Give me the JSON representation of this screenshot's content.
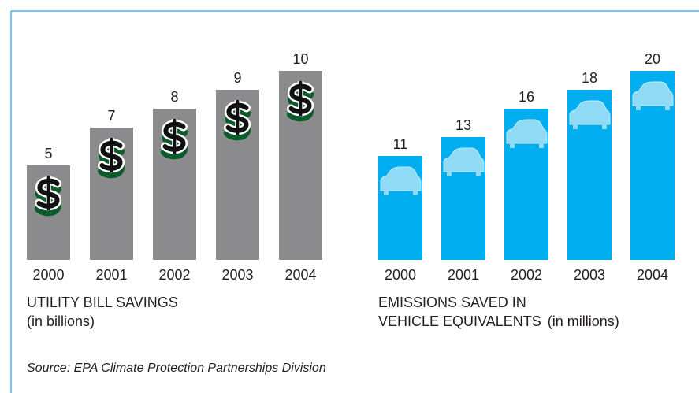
{
  "chart_data": [
    {
      "type": "bar",
      "title": [
        "UTILITY BILL SAVINGS"
      ],
      "subtitle": "(in billions)",
      "categories": [
        "2000",
        "2001",
        "2002",
        "2003",
        "2004"
      ],
      "values": [
        5,
        7,
        8,
        9,
        10
      ],
      "color": "#8b8b8d",
      "icon": "dollar"
    },
    {
      "type": "bar",
      "title": [
        "EMISSIONS SAVED IN",
        "VEHICLE EQUIVALENTS"
      ],
      "subtitle": "(in millions)",
      "categories": [
        "2000",
        "2001",
        "2002",
        "2003",
        "2004"
      ],
      "values": [
        11,
        13,
        16,
        18,
        20
      ],
      "color": "#00aeef",
      "icon": "car"
    }
  ],
  "source": "Source: EPA Climate Protection Partnerships Division"
}
